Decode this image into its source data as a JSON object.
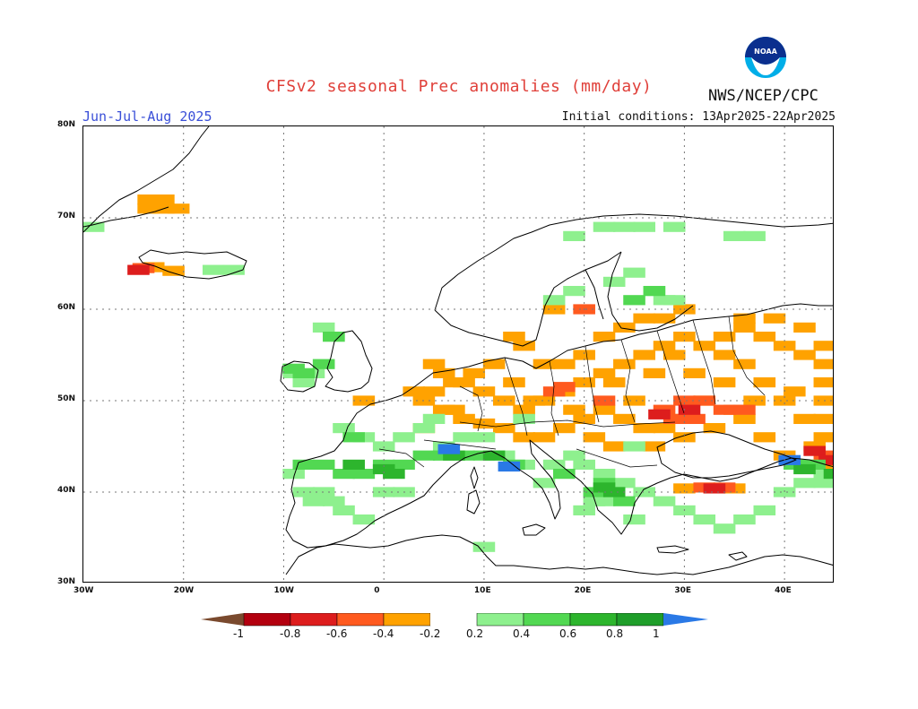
{
  "title": "CFSv2 seasonal Prec anomalies (mm/day)",
  "organization": "NWS/NCEP/CPC",
  "logo_text": "NOAA",
  "period": "Jun-Jul-Aug 2025",
  "initial_conditions": "Initial conditions: 13Apr2025-22Apr2025",
  "map": {
    "lon_range": [
      -30,
      45
    ],
    "lat_range": [
      30,
      80
    ],
    "lat_labels": [
      "30N",
      "40N",
      "50N",
      "60N",
      "70N",
      "80N"
    ],
    "lat_values": [
      30,
      40,
      50,
      60,
      70,
      80
    ],
    "lon_labels": [
      "30W",
      "20W",
      "10W",
      "0",
      "10E",
      "20E",
      "30E",
      "40E"
    ],
    "lon_values": [
      -30,
      -20,
      -10,
      0,
      10,
      20,
      30,
      40
    ],
    "grid_lines": true
  },
  "legend": {
    "labels": [
      "-1",
      "-0.8",
      "-0.6",
      "-0.4",
      "-0.2",
      "0.2",
      "0.4",
      "0.6",
      "0.8",
      "1"
    ],
    "colors": {
      "below_min": "#7a4a2e",
      "n08_n10": "#b3000f",
      "n06_n08": "#dd1d1d",
      "n04_n06": "#ff5a1f",
      "n02_n04": "#ffa200",
      "neutral": "#ffffff",
      "p02_p04": "#8ef08e",
      "p04_p06": "#52d852",
      "p06_p08": "#2db52d",
      "p08_p10": "#1f9e2a",
      "above_max": "#2a79e6"
    }
  },
  "anomaly_regions": [
    {
      "category": "n02_n04",
      "cells": [
        [
          -23.5,
          71
        ],
        [
          -22,
          71
        ],
        [
          -20.5,
          71
        ],
        [
          -22,
          72
        ],
        [
          -23.5,
          72
        ],
        [
          -21,
          64.2
        ],
        [
          -23,
          64.6
        ],
        [
          6,
          53
        ],
        [
          5,
          54
        ],
        [
          8,
          52
        ],
        [
          10,
          51
        ],
        [
          12,
          50
        ],
        [
          14,
          49
        ],
        [
          16,
          50
        ],
        [
          18,
          51
        ],
        [
          20,
          52
        ],
        [
          22,
          53
        ],
        [
          24,
          54
        ],
        [
          26,
          55
        ],
        [
          28,
          56
        ],
        [
          30,
          57
        ],
        [
          32,
          56
        ],
        [
          34,
          57
        ],
        [
          36,
          58
        ],
        [
          38,
          57
        ],
        [
          40,
          56
        ],
        [
          42,
          55
        ],
        [
          44,
          54
        ],
        [
          44,
          52
        ],
        [
          44,
          50
        ],
        [
          44,
          48
        ],
        [
          44,
          46
        ],
        [
          42,
          48
        ],
        [
          40,
          50
        ],
        [
          38,
          52
        ],
        [
          36,
          54
        ],
        [
          34,
          52
        ],
        [
          32,
          50
        ],
        [
          30,
          48
        ],
        [
          28,
          47
        ],
        [
          26,
          47
        ],
        [
          24,
          48
        ],
        [
          22,
          49
        ],
        [
          20,
          48
        ],
        [
          18,
          47
        ],
        [
          16,
          46
        ],
        [
          14,
          46
        ],
        [
          12,
          47
        ],
        [
          10,
          47.5
        ],
        [
          8,
          48
        ],
        [
          6,
          49
        ],
        [
          4,
          50
        ],
        [
          3,
          51
        ],
        [
          16,
          54
        ],
        [
          18,
          54
        ],
        [
          20,
          55
        ],
        [
          22,
          57
        ],
        [
          24,
          58
        ],
        [
          26,
          59
        ],
        [
          28,
          59
        ],
        [
          30,
          60
        ],
        [
          14,
          56
        ],
        [
          17,
          60
        ],
        [
          13,
          57
        ],
        [
          -2,
          50
        ],
        [
          4,
          47
        ],
        [
          7,
          49
        ],
        [
          13,
          52
        ],
        [
          15,
          50
        ],
        [
          19,
          49
        ],
        [
          21,
          46
        ],
        [
          23,
          45
        ],
        [
          27,
          45
        ],
        [
          30,
          46
        ],
        [
          33,
          47
        ],
        [
          36,
          48
        ],
        [
          38,
          46
        ],
        [
          40,
          44
        ],
        [
          42,
          43
        ],
        [
          44,
          43
        ],
        [
          44,
          56
        ],
        [
          42,
          58
        ],
        [
          39,
          59
        ],
        [
          36,
          59
        ],
        [
          34,
          55
        ],
        [
          25,
          50
        ],
        [
          23,
          52
        ],
        [
          11,
          54
        ],
        [
          9,
          53
        ],
        [
          7,
          52
        ],
        [
          5,
          51
        ],
        [
          37,
          50
        ],
        [
          35,
          49
        ],
        [
          31,
          53
        ],
        [
          29,
          55
        ],
        [
          27,
          53
        ],
        [
          41,
          51
        ],
        [
          43,
          45
        ],
        [
          33,
          40.4
        ],
        [
          35,
          40.4
        ],
        [
          30,
          40.4
        ]
      ]
    },
    {
      "category": "n04_n06",
      "cells": [
        [
          17,
          51
        ],
        [
          18,
          51.5
        ],
        [
          22,
          50
        ],
        [
          28,
          49
        ],
        [
          30,
          50
        ],
        [
          32,
          50
        ],
        [
          34,
          49
        ],
        [
          36,
          49
        ],
        [
          29,
          48
        ],
        [
          31,
          48
        ],
        [
          20,
          60
        ],
        [
          -24,
          64.5
        ],
        [
          32,
          40.5
        ],
        [
          34,
          40.5
        ],
        [
          44,
          44
        ]
      ]
    },
    {
      "category": "n06_n08",
      "cells": [
        [
          30.5,
          49
        ],
        [
          27.5,
          48.5
        ],
        [
          -24.5,
          64.3
        ],
        [
          33,
          40.4
        ],
        [
          43,
          44.5
        ],
        [
          44.5,
          43.5
        ]
      ]
    },
    {
      "category": "p02_p04",
      "cells": [
        [
          -29,
          69
        ],
        [
          -17,
          64.3
        ],
        [
          -15,
          64.3
        ],
        [
          17,
          61
        ],
        [
          19,
          62
        ],
        [
          23,
          63
        ],
        [
          25,
          64
        ],
        [
          27,
          62
        ],
        [
          29,
          61
        ],
        [
          22,
          69
        ],
        [
          24,
          69
        ],
        [
          19,
          68
        ],
        [
          26,
          69
        ],
        [
          29,
          69
        ],
        [
          35,
          68
        ],
        [
          37,
          68
        ],
        [
          28,
          61
        ],
        [
          -5,
          57
        ],
        [
          -6,
          58
        ],
        [
          -9,
          53
        ],
        [
          -8,
          52
        ],
        [
          -7,
          53
        ],
        [
          -4,
          47
        ],
        [
          -2,
          46
        ],
        [
          0,
          45
        ],
        [
          2,
          46
        ],
        [
          4,
          47
        ],
        [
          6,
          45
        ],
        [
          8,
          46
        ],
        [
          10,
          46
        ],
        [
          12,
          44
        ],
        [
          14,
          43
        ],
        [
          16,
          41
        ],
        [
          -9,
          42
        ],
        [
          -8,
          40
        ],
        [
          -6,
          40
        ],
        [
          -4,
          38
        ],
        [
          -2,
          37
        ],
        [
          -7,
          39
        ],
        [
          -5,
          39
        ],
        [
          0,
          40
        ],
        [
          2,
          40
        ],
        [
          20,
          43
        ],
        [
          22,
          42
        ],
        [
          24,
          41
        ],
        [
          26,
          40
        ],
        [
          28,
          39
        ],
        [
          30,
          38
        ],
        [
          32,
          37
        ],
        [
          34,
          36
        ],
        [
          36,
          37
        ],
        [
          38,
          38
        ],
        [
          40,
          40
        ],
        [
          42,
          41
        ],
        [
          44,
          41
        ],
        [
          25,
          45
        ],
        [
          10,
          34
        ],
        [
          20,
          38
        ],
        [
          21,
          39
        ],
        [
          6,
          44
        ],
        [
          17,
          43
        ],
        [
          19,
          44
        ],
        [
          5,
          48
        ],
        [
          14,
          48
        ],
        [
          44,
          42
        ],
        [
          25,
          37
        ],
        [
          22,
          39
        ]
      ]
    },
    {
      "category": "p04_p06",
      "cells": [
        [
          -9,
          53.5
        ],
        [
          -8,
          53
        ],
        [
          -6,
          54
        ],
        [
          -5,
          57
        ],
        [
          -4,
          42
        ],
        [
          -2,
          42
        ],
        [
          0,
          43
        ],
        [
          2,
          43
        ],
        [
          4,
          44
        ],
        [
          6,
          44
        ],
        [
          8,
          44
        ],
        [
          10,
          44
        ],
        [
          13,
          43
        ],
        [
          -8,
          43
        ],
        [
          -6,
          43
        ],
        [
          22,
          41
        ],
        [
          23,
          40
        ],
        [
          21,
          40
        ],
        [
          24,
          39
        ],
        [
          -3,
          46
        ],
        [
          43,
          43
        ],
        [
          41,
          43
        ],
        [
          18,
          42
        ],
        [
          27,
          62
        ],
        [
          25,
          61
        ]
      ]
    },
    {
      "category": "p06_p08",
      "cells": [
        [
          -3,
          43
        ],
        [
          0,
          42.5
        ],
        [
          1,
          42
        ],
        [
          22,
          40.5
        ],
        [
          23,
          40
        ],
        [
          11,
          44
        ],
        [
          7,
          44
        ],
        [
          42,
          42.5
        ],
        [
          45,
          42
        ]
      ]
    },
    {
      "category": "above_max",
      "cells": [
        [
          6.5,
          44.7
        ],
        [
          12.5,
          42.8
        ],
        [
          40.5,
          43.5
        ]
      ]
    }
  ]
}
